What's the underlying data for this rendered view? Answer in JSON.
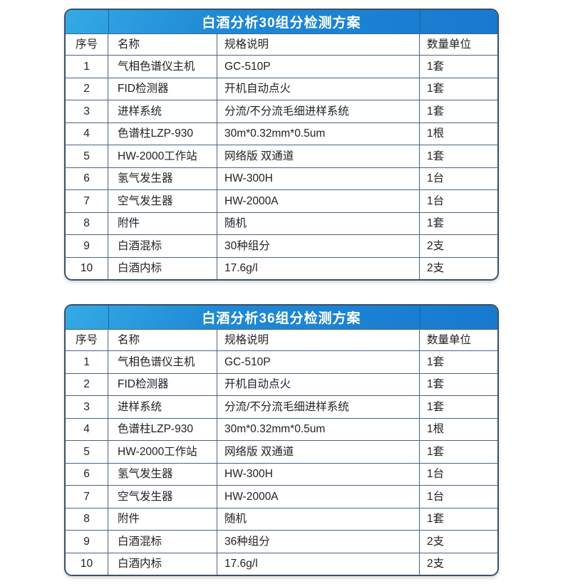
{
  "colors": {
    "title-grad-a": "#35aae5",
    "title-grad-b": "#1879cf",
    "outer-border": "#3a5068",
    "grid-line": "#4a657e",
    "title-sep": "#1467a8",
    "text": "#222222",
    "title-text": "#ffffff",
    "bg": "#ffffff"
  },
  "tables": [
    {
      "title": "白酒分析30组分检测方案",
      "columns": [
        "序号",
        "名称",
        "规格说明",
        "数量单位"
      ],
      "rows": [
        [
          "1",
          "气相色谱仪主机",
          "GC-510P",
          "1套"
        ],
        [
          "2",
          "FID检测器",
          "开机自动点火",
          "1套"
        ],
        [
          "3",
          "进样系统",
          "分流/不分流毛细进样系统",
          "1套"
        ],
        [
          "4",
          "色谱柱LZP-930",
          "30m*0.32mm*0.5um",
          "1根"
        ],
        [
          "5",
          "HW-2000工作站",
          "网络版 双通道",
          "1套"
        ],
        [
          "6",
          "氢气发生器",
          "HW-300H",
          "1台"
        ],
        [
          "7",
          "空气发生器",
          "HW-2000A",
          "1台"
        ],
        [
          "8",
          "附件",
          "随机",
          "1套"
        ],
        [
          "9",
          "白酒混标",
          "30种组分",
          "2支"
        ],
        [
          "10",
          "白酒内标",
          "17.6g/l",
          "2支"
        ]
      ]
    },
    {
      "title": "白酒分析36组分检测方案",
      "columns": [
        "序号",
        "名称",
        "规格说明",
        "数量单位"
      ],
      "rows": [
        [
          "1",
          "气相色谱仪主机",
          "GC-510P",
          "1套"
        ],
        [
          "2",
          "FID检测器",
          "开机自动点火",
          "1套"
        ],
        [
          "3",
          "进样系统",
          "分流/不分流毛细进样系统",
          "1套"
        ],
        [
          "4",
          "色谱柱LZP-930",
          "30m*0.32mm*0.5um",
          "1根"
        ],
        [
          "5",
          "HW-2000工作站",
          "网络版 双通道",
          "1套"
        ],
        [
          "6",
          "氢气发生器",
          "HW-300H",
          "1台"
        ],
        [
          "7",
          "空气发生器",
          "HW-2000A",
          "1台"
        ],
        [
          "8",
          "附件",
          "随机",
          "1套"
        ],
        [
          "9",
          "白酒混标",
          "36种组分",
          "2支"
        ],
        [
          "10",
          "白酒内标",
          "17.6g/l",
          "2支"
        ]
      ]
    }
  ]
}
